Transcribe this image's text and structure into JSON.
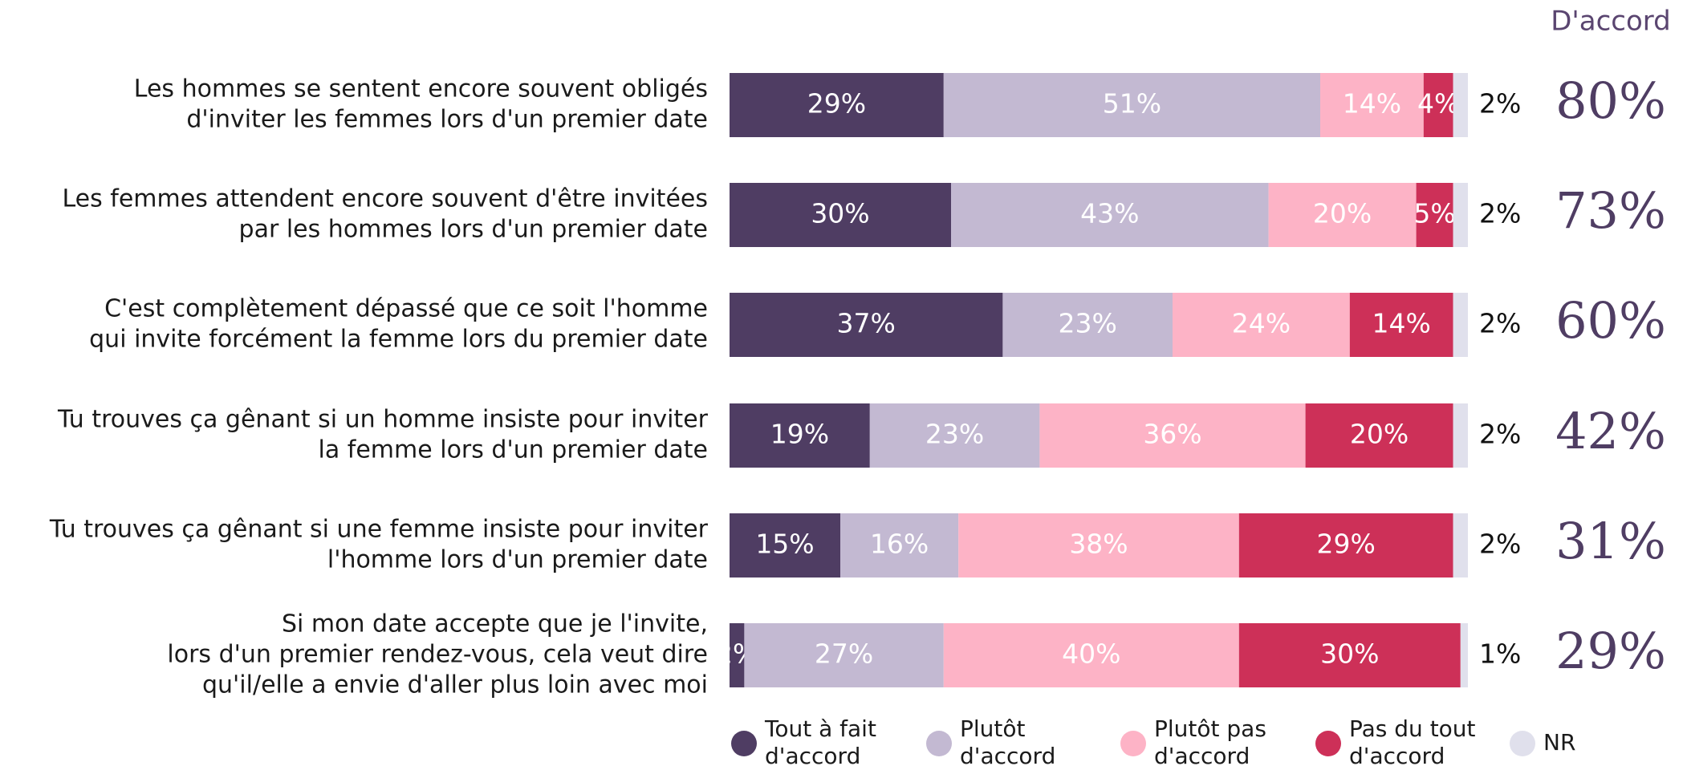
{
  "chart_data": {
    "type": "stacked_bar_horizontal",
    "categories": [
      [
        "Les hommes se sentent encore souvent obligés",
        "d'inviter les femmes lors d'un premier date"
      ],
      [
        "Les femmes attendent encore souvent d'être invitées",
        "par les hommes lors d'un premier date"
      ],
      [
        "C'est complètement dépassé que ce soit l'homme",
        "qui invite forcément la femme lors du premier date"
      ],
      [
        "Tu trouves ça gênant si un homme insiste pour inviter",
        "la femme lors d'un premier date"
      ],
      [
        "Tu trouves ça gênant si une femme insiste pour inviter",
        "l'homme lors d'un premier date"
      ],
      [
        "Si mon date accepte que je l'invite,",
        "lors d'un premier rendez-vous, cela veut dire",
        "qu'il/elle a envie d'aller plus loin avec moi"
      ]
    ],
    "xlim": [
      0,
      100
    ],
    "series": [
      {
        "name": [
          "Tout à fait",
          "d'accord"
        ],
        "color": "#4f3d63",
        "label_color": "#ffffff",
        "values": [
          29,
          30,
          37,
          19,
          15,
          2
        ],
        "value_labels": [
          "29%",
          "30%",
          "37%",
          "19%",
          "15%",
          "2%"
        ]
      },
      {
        "name": [
          "Plutôt",
          "d'accord"
        ],
        "color": "#c3b9d2",
        "label_color": "#ffffff",
        "values": [
          51,
          43,
          23,
          23,
          16,
          27
        ],
        "value_labels": [
          "51%",
          "43%",
          "23%",
          "23%",
          "16%",
          "27%"
        ]
      },
      {
        "name": [
          "Plutôt pas",
          "d'accord"
        ],
        "color": "#fdb3c6",
        "label_color": "#ffffff",
        "values": [
          14,
          20,
          24,
          36,
          38,
          40
        ],
        "value_labels": [
          "14%",
          "20%",
          "24%",
          "36%",
          "38%",
          "40%"
        ]
      },
      {
        "name": [
          "Pas du tout",
          "d'accord"
        ],
        "color": "#cd3058",
        "label_color": "#ffffff",
        "values": [
          4,
          5,
          14,
          20,
          29,
          30
        ],
        "value_labels": [
          "4%",
          "5%",
          "14%",
          "20%",
          "29%",
          "30%"
        ]
      },
      {
        "name": [
          "NR"
        ],
        "color": "#e0e0ec",
        "label_color": "#111111",
        "label_outside": true,
        "values": [
          2,
          2,
          2,
          2,
          2,
          1
        ],
        "value_labels": [
          "2%",
          "2%",
          "2%",
          "2%",
          "2%",
          "1%"
        ]
      }
    ],
    "agree": {
      "title": "D'accord",
      "color": "#4f3d63",
      "values": [
        80,
        73,
        60,
        42,
        31,
        29
      ],
      "value_labels": [
        "80%",
        "73%",
        "60%",
        "42%",
        "31%",
        "29%"
      ]
    }
  }
}
